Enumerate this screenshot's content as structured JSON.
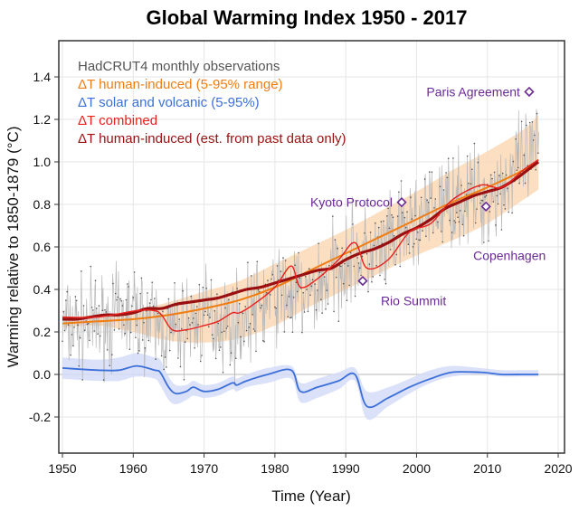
{
  "chart_data": {
    "type": "line",
    "title": "Global Warming Index 1950 - 2017",
    "xlabel": "Time (Year)",
    "ylabel": "Warming relative to 1850-1879 (°C)",
    "xlim": [
      1949.5,
      2020.8
    ],
    "ylim": [
      -0.37,
      1.55
    ],
    "xticks": [
      1950,
      1960,
      1970,
      1980,
      1990,
      2000,
      2010,
      2020
    ],
    "yticks": [
      -0.2,
      0.0,
      0.2,
      0.4,
      0.6,
      0.8,
      1.0,
      1.2,
      1.4
    ],
    "ytick_labels": [
      "-0.2",
      "0.0",
      "0.2",
      "0.4",
      "0.6",
      "0.8",
      "1.0",
      "1.2",
      "1.4"
    ],
    "grid": true,
    "legend_position": "top-left",
    "legend": [
      {
        "label": "HadCRUT4 monthly observations",
        "color": "#555555"
      },
      {
        "label": "ΔT human-induced (5-95% range)",
        "color": "#f07d12"
      },
      {
        "label": "ΔT solar and volcanic (5-95%)",
        "color": "#3c6fd8"
      },
      {
        "label": "ΔT combined",
        "color": "#e8201e"
      },
      {
        "label": "ΔT human-induced (est. from past data only)",
        "color": "#9a1010"
      }
    ],
    "series": [
      {
        "name": "ΔT human-induced (5-95% range)",
        "color": "#f07d12",
        "x": [
          1950,
          1955,
          1960,
          1965,
          1970,
          1975,
          1980,
          1985,
          1990,
          1995,
          2000,
          2005,
          2010,
          2015,
          2017.2
        ],
        "y": [
          0.24,
          0.25,
          0.26,
          0.28,
          0.31,
          0.35,
          0.41,
          0.49,
          0.57,
          0.65,
          0.73,
          0.81,
          0.88,
          0.96,
          1.01
        ],
        "lower": [
          0.22,
          0.23,
          0.2,
          0.16,
          0.15,
          0.17,
          0.23,
          0.32,
          0.4,
          0.48,
          0.56,
          0.63,
          0.71,
          0.82,
          0.87
        ],
        "upper": [
          0.27,
          0.28,
          0.3,
          0.34,
          0.39,
          0.44,
          0.52,
          0.6,
          0.68,
          0.77,
          0.86,
          0.96,
          1.05,
          1.15,
          1.22
        ]
      },
      {
        "name": "ΔT solar and volcanic (5-95%)",
        "color": "#3c6fd8",
        "x": [
          1950,
          1955,
          1958,
          1960.5,
          1963,
          1963.8,
          1965,
          1966,
          1967.5,
          1968.5,
          1970,
          1972,
          1974,
          1974.6,
          1976,
          1979,
          1982.3,
          1983.6,
          1986,
          1989,
          1991.3,
          1993,
          1996,
          1999,
          2002,
          2005,
          2009,
          2012,
          2015,
          2017.2
        ],
        "y": [
          0.03,
          0.02,
          0.02,
          0.04,
          0.02,
          0.01,
          -0.06,
          -0.09,
          -0.08,
          -0.06,
          -0.08,
          -0.07,
          -0.04,
          -0.05,
          -0.03,
          0.0,
          0.02,
          -0.08,
          -0.06,
          -0.03,
          0.0,
          -0.15,
          -0.11,
          -0.06,
          -0.02,
          0.01,
          0.01,
          0.0,
          0.0,
          0.0
        ],
        "lower": [
          -0.02,
          -0.03,
          -0.03,
          -0.01,
          -0.02,
          -0.05,
          -0.12,
          -0.14,
          -0.12,
          -0.1,
          -0.11,
          -0.1,
          -0.07,
          -0.08,
          -0.06,
          -0.04,
          -0.02,
          -0.13,
          -0.11,
          -0.07,
          -0.03,
          -0.21,
          -0.15,
          -0.09,
          -0.04,
          -0.01,
          0.0,
          -0.01,
          -0.01,
          -0.01
        ],
        "upper": [
          0.08,
          0.07,
          0.08,
          0.1,
          0.08,
          0.07,
          -0.01,
          -0.05,
          -0.05,
          -0.03,
          -0.05,
          -0.04,
          -0.01,
          -0.02,
          0.0,
          0.03,
          0.04,
          -0.04,
          -0.02,
          0.01,
          0.03,
          -0.08,
          -0.06,
          -0.02,
          0.02,
          0.04,
          0.03,
          0.02,
          0.02,
          0.02
        ]
      },
      {
        "name": "ΔT combined",
        "color": "#e8201e",
        "x": [
          1950,
          1955,
          1960.5,
          1963,
          1964,
          1965.5,
          1967.5,
          1970,
          1972,
          1974,
          1975,
          1977,
          1980,
          1982.3,
          1983.6,
          1986,
          1989,
          1991.3,
          1993,
          1996,
          1999,
          2002,
          2005,
          2009,
          2012,
          2015,
          2017.2
        ],
        "y": [
          0.27,
          0.27,
          0.3,
          0.3,
          0.28,
          0.21,
          0.21,
          0.23,
          0.25,
          0.29,
          0.29,
          0.33,
          0.41,
          0.51,
          0.41,
          0.45,
          0.54,
          0.62,
          0.5,
          0.54,
          0.67,
          0.71,
          0.82,
          0.89,
          0.88,
          0.96,
          1.01
        ]
      },
      {
        "name": "ΔT human-induced (est. from past data only)",
        "color": "#9a1010",
        "x": [
          1950,
          1952,
          1954,
          1956,
          1958,
          1960,
          1962,
          1964,
          1966,
          1968,
          1970,
          1972,
          1974,
          1976,
          1978,
          1980,
          1982,
          1984,
          1986,
          1988,
          1990,
          1992,
          1994,
          1996,
          1998,
          2000,
          2002,
          2004,
          2006,
          2008,
          2010,
          2012,
          2014,
          2016,
          2017.2
        ],
        "y": [
          0.26,
          0.26,
          0.27,
          0.28,
          0.28,
          0.29,
          0.31,
          0.31,
          0.33,
          0.34,
          0.35,
          0.36,
          0.38,
          0.4,
          0.41,
          0.43,
          0.45,
          0.47,
          0.49,
          0.5,
          0.54,
          0.57,
          0.59,
          0.62,
          0.66,
          0.69,
          0.73,
          0.78,
          0.81,
          0.84,
          0.86,
          0.88,
          0.92,
          0.97,
          1.0
        ]
      }
    ],
    "observations_summary": {
      "name": "HadCRUT4 monthly observations",
      "color": "#888888",
      "anchor_x": [
        1950,
        1955,
        1960,
        1965,
        1970,
        1975,
        1980,
        1985,
        1990,
        1995,
        2000,
        2005,
        2010,
        2015,
        2017
      ],
      "anchor_y": [
        0.22,
        0.24,
        0.29,
        0.19,
        0.27,
        0.24,
        0.38,
        0.37,
        0.55,
        0.56,
        0.72,
        0.82,
        0.84,
        0.98,
        1.05
      ],
      "spread": 0.22
    },
    "annotations": [
      {
        "label": "Paris Agreement",
        "x": 2015.9,
        "y": 1.33,
        "label_side": "left"
      },
      {
        "label": "Kyoto Protocol",
        "x": 1997.9,
        "y": 0.81,
        "label_side": "left"
      },
      {
        "label": "Rio Summit",
        "x": 1992.4,
        "y": 0.44,
        "label_side": "below-right"
      },
      {
        "label": "Copenhagen",
        "x": 2009.8,
        "y": 0.79,
        "label_side": "below"
      }
    ]
  }
}
